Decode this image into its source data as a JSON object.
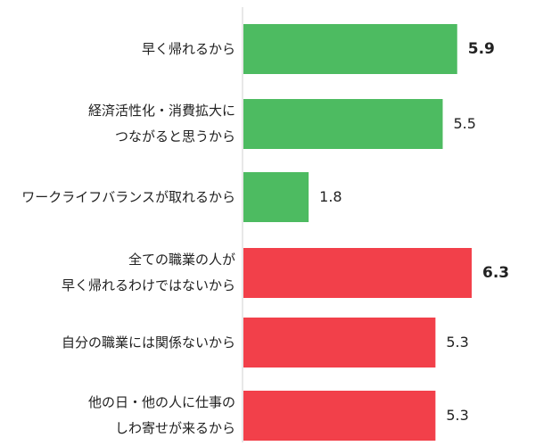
{
  "chart_data": {
    "type": "bar",
    "orientation": "horizontal",
    "categories": [
      "早く帰れるから",
      "経済活性化・消費拡大に\nつながると思うから",
      "ワークライフバランスが取れるから",
      "全ての職業の人が\n早く帰れるわけではないから",
      "自分の職業には関係ないから",
      "他の日・他の人に仕事の\nしわ寄せが来るから"
    ],
    "values": [
      5.9,
      5.5,
      1.8,
      6.3,
      5.3,
      5.3
    ],
    "value_labels": [
      "5.9",
      "5.5",
      "1.8",
      "6.3",
      "5.3",
      "5.3"
    ],
    "bold_values": [
      true,
      false,
      false,
      true,
      false,
      false
    ],
    "colors": [
      "#4dbb61",
      "#4dbb61",
      "#4dbb61",
      "#f2404a",
      "#f2404a",
      "#f2404a"
    ],
    "xlim": [
      0,
      6.3
    ],
    "axis_line_color": "#d0d0d0",
    "grid": false,
    "title": "",
    "xlabel": "",
    "ylabel": ""
  }
}
